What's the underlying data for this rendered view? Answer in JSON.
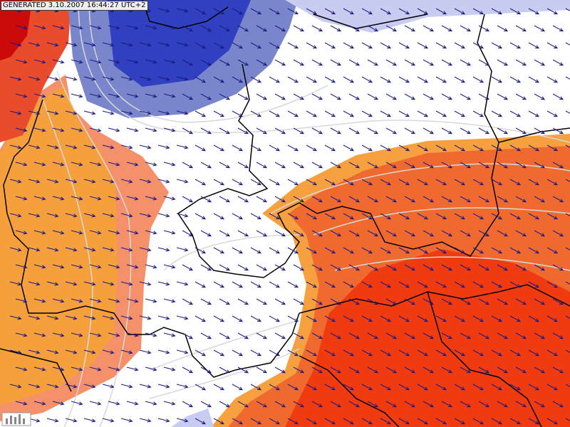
{
  "header": {
    "title": "GENERATED 3.10.2007 16:44:27 UTC+2"
  }
}
